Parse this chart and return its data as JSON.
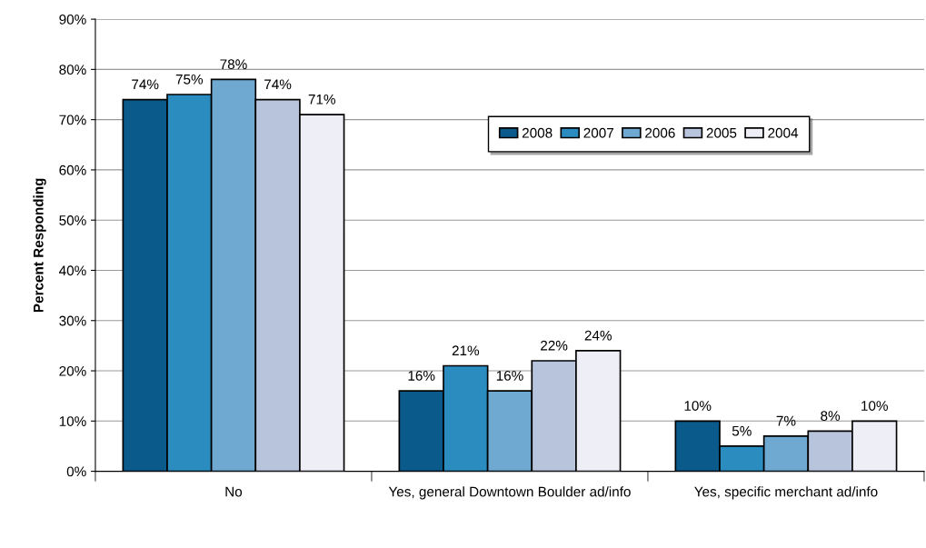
{
  "chart_data": {
    "type": "bar",
    "ylabel": "Percent Responding",
    "categories": [
      "No",
      "Yes, general Downtown Boulder ad/info",
      "Yes, specific merchant ad/info"
    ],
    "series": [
      {
        "name": "2008",
        "color": "#0b5a8c",
        "values": [
          74,
          16,
          10
        ],
        "value_labels": [
          "74%",
          "16%",
          "10%"
        ]
      },
      {
        "name": "2007",
        "color": "#2b8cc0",
        "values": [
          75,
          21,
          5
        ],
        "value_labels": [
          "75%",
          "21%",
          "5%"
        ]
      },
      {
        "name": "2006",
        "color": "#6fa8d0",
        "values": [
          78,
          16,
          7
        ],
        "value_labels": [
          "78%",
          "16%",
          "7%"
        ]
      },
      {
        "name": "2005",
        "color": "#b8c4dc",
        "values": [
          74,
          22,
          8
        ],
        "value_labels": [
          "74%",
          "22%",
          "8%"
        ]
      },
      {
        "name": "2004",
        "color": "#eeeef6",
        "values": [
          71,
          24,
          10
        ],
        "value_labels": [
          "71%",
          "24%",
          "10%"
        ]
      }
    ],
    "ylim": [
      0,
      90
    ],
    "yticks": [
      {
        "value": 0,
        "label": "0%"
      },
      {
        "value": 10,
        "label": "10%"
      },
      {
        "value": 20,
        "label": "20%"
      },
      {
        "value": 30,
        "label": "30%"
      },
      {
        "value": 40,
        "label": "40%"
      },
      {
        "value": 50,
        "label": "50%"
      },
      {
        "value": 60,
        "label": "60%"
      },
      {
        "value": 70,
        "label": "70%"
      },
      {
        "value": 80,
        "label": "80%"
      },
      {
        "value": 90,
        "label": "90%"
      }
    ],
    "grid": "y",
    "legend": "top right"
  }
}
